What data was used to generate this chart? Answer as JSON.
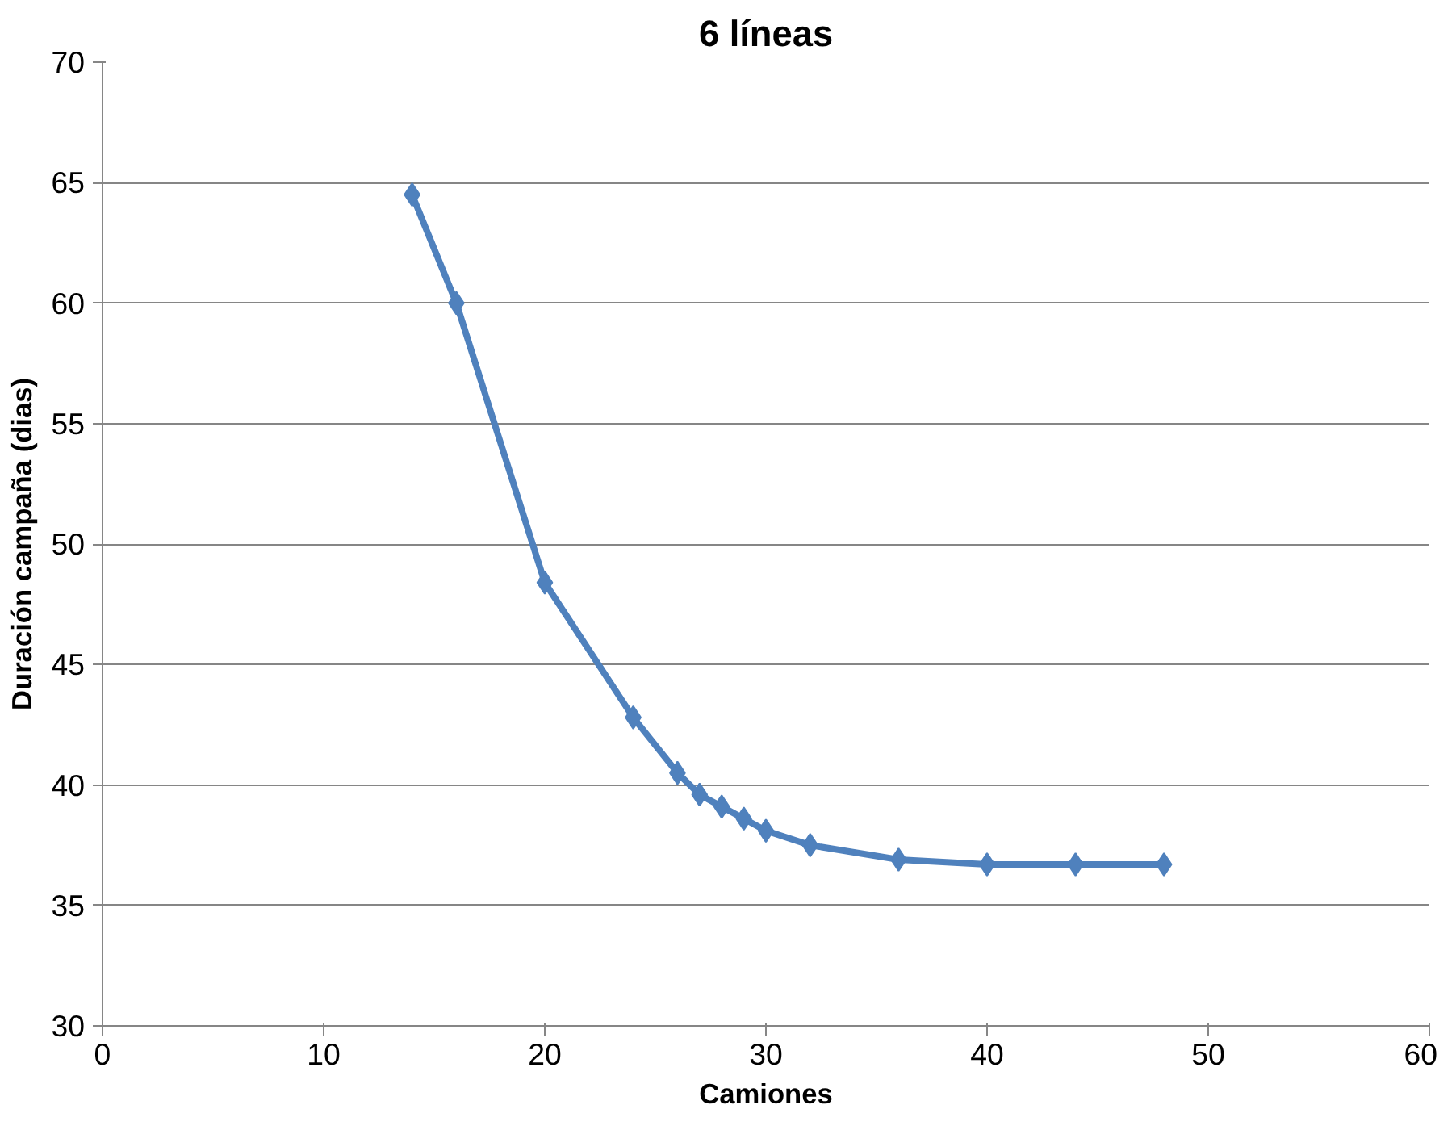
{
  "chart_data": {
    "type": "line",
    "title": "6 líneas",
    "xlabel": "Camiones",
    "ylabel": "Duración campaña (dias)",
    "x": [
      14,
      16,
      20,
      24,
      26,
      27,
      28,
      29,
      30,
      32,
      36,
      40,
      44,
      48
    ],
    "series": [
      {
        "color": "#4f81bd",
        "values": [
          64.5,
          60.0,
          48.4,
          42.8,
          40.5,
          39.6,
          39.1,
          38.6,
          38.1,
          37.5,
          36.9,
          36.7,
          36.7,
          36.7
        ]
      }
    ],
    "xlim": [
      0,
      60
    ],
    "xticks": [
      0,
      10,
      20,
      30,
      40,
      50,
      60
    ],
    "ylim": [
      30,
      70
    ],
    "yticks": [
      30,
      35,
      40,
      45,
      50,
      55,
      60,
      65,
      70
    ],
    "grid": "y",
    "marker": "diamond",
    "line_style": "solid"
  }
}
